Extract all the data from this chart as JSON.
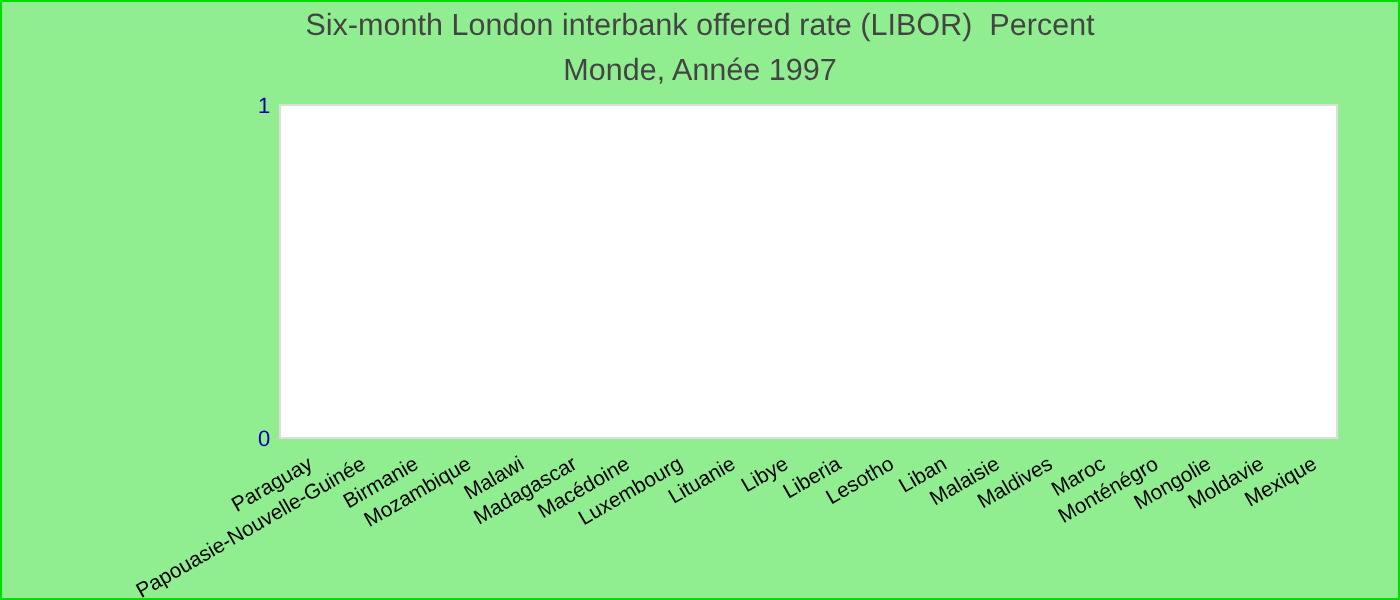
{
  "chart_data": {
    "type": "bar",
    "title": "Six-month London interbank offered rate (LIBOR)  Percent",
    "subtitle": "Monde, Année 1997",
    "categories": [
      "Paraguay",
      "Papouasie-Nouvelle-Guinée",
      "Birmanie",
      "Mozambique",
      "Malawi",
      "Madagascar",
      "Macédoine",
      "Luxembourg",
      "Lituanie",
      "Libye",
      "Liberia",
      "Lesotho",
      "Liban",
      "Malaisie",
      "Maldives",
      "Maroc",
      "Monténégro",
      "Mongolie",
      "Moldavie",
      "Mexique"
    ],
    "values": [
      null,
      null,
      null,
      null,
      null,
      null,
      null,
      null,
      null,
      null,
      null,
      null,
      null,
      null,
      null,
      null,
      null,
      null,
      null,
      null
    ],
    "ylim": [
      0,
      1
    ],
    "yticks": [
      0,
      1
    ],
    "grid": false,
    "legend": false
  }
}
